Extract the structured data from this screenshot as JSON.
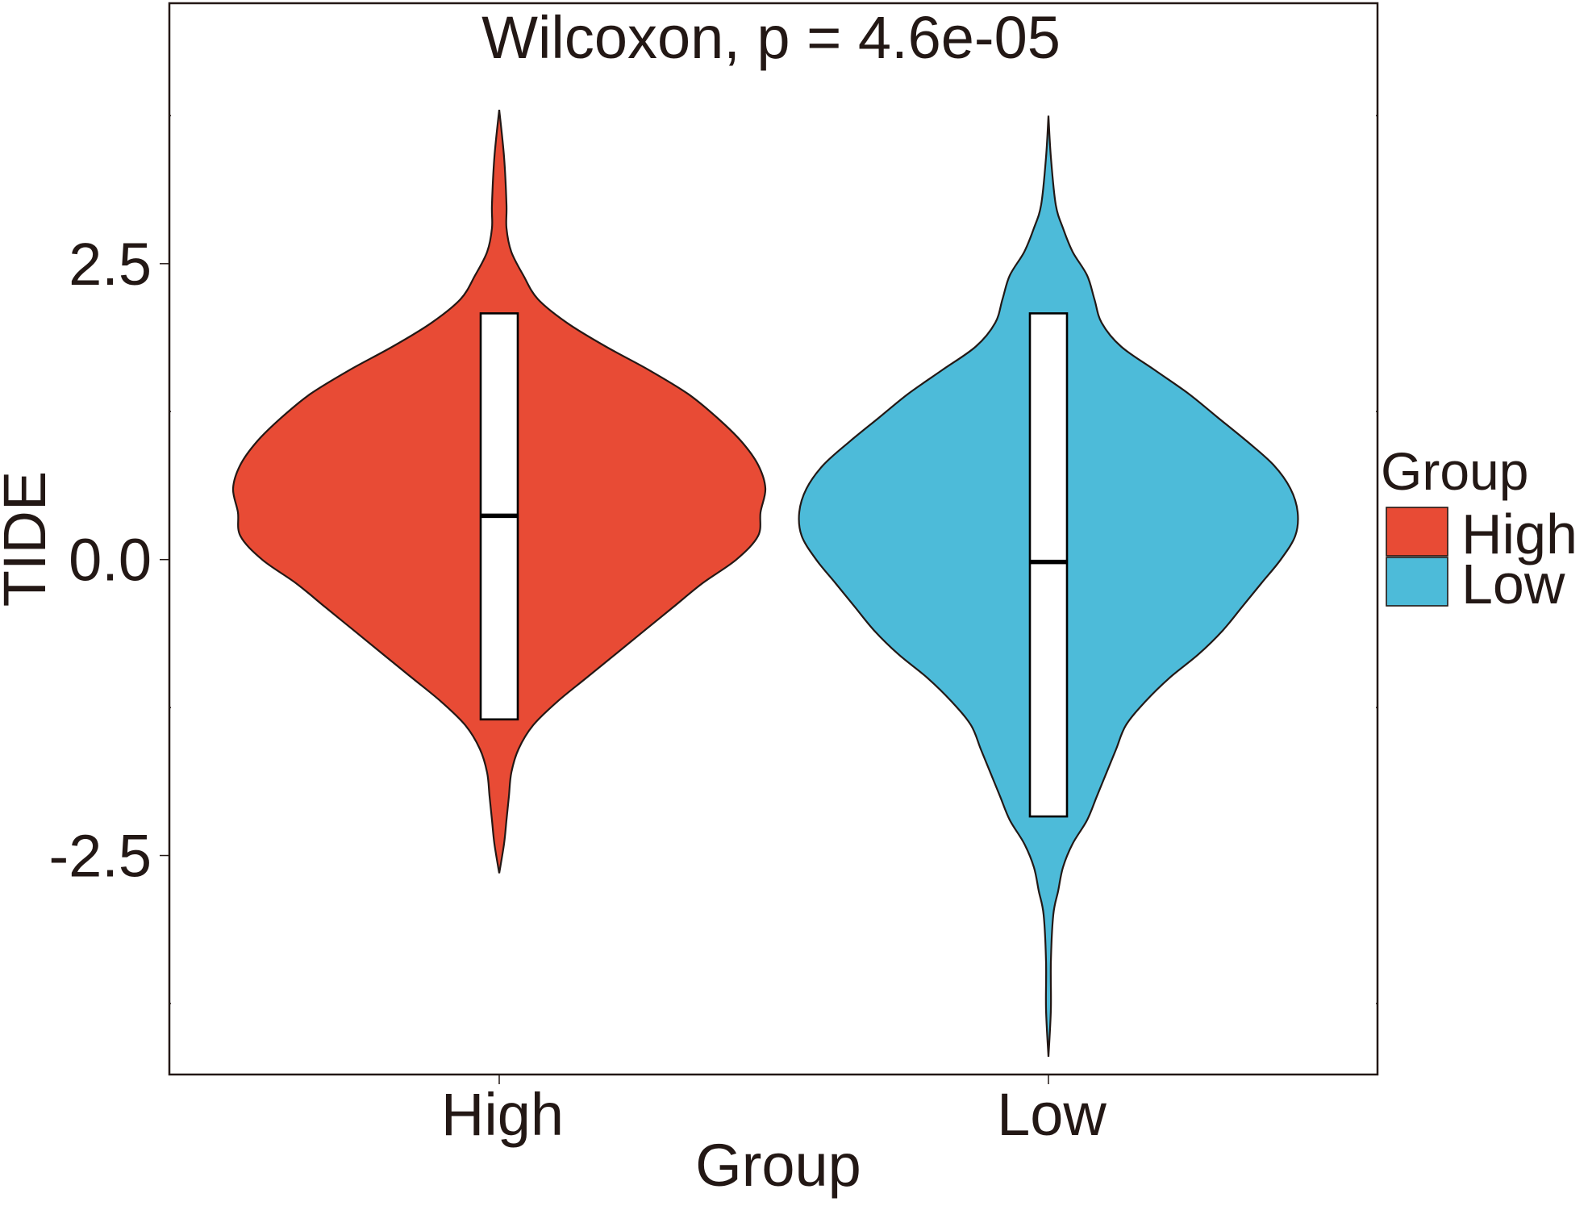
{
  "chart_data": {
    "type": "violin",
    "title": "",
    "annotation": "Wilcoxon, p = 4.6e-05",
    "xlabel": "Group",
    "ylabel": "TIDE",
    "ylim": [
      -4.35,
      4.7
    ],
    "y_ticks": [
      -2.5,
      0.0,
      2.5
    ],
    "y_tick_labels": [
      "-2.5",
      "0.0",
      "2.5"
    ],
    "categories": [
      "High",
      "Low"
    ],
    "grid": false,
    "legend": {
      "title": "Group",
      "position": "right",
      "entries": [
        {
          "label": "High",
          "color": "#E84B35"
        },
        {
          "label": "Low",
          "color": "#4DBBD9"
        }
      ]
    },
    "series": [
      {
        "name": "High",
        "color": "#E84B35",
        "box": {
          "q1": -1.35,
          "median": 0.37,
          "q3": 2.08
        },
        "range": [
          -2.65,
          3.8
        ],
        "density": [
          [
            3.8,
            0.0
          ],
          [
            3.4,
            0.02
          ],
          [
            3.0,
            0.03
          ],
          [
            2.8,
            0.03
          ],
          [
            2.6,
            0.05
          ],
          [
            2.4,
            0.1
          ],
          [
            2.2,
            0.16
          ],
          [
            2.0,
            0.28
          ],
          [
            1.8,
            0.44
          ],
          [
            1.6,
            0.62
          ],
          [
            1.4,
            0.78
          ],
          [
            1.2,
            0.9
          ],
          [
            1.0,
            1.0
          ],
          [
            0.8,
            1.07
          ],
          [
            0.6,
            1.1
          ],
          [
            0.4,
            1.08
          ],
          [
            0.2,
            1.07
          ],
          [
            0.0,
            0.98
          ],
          [
            -0.2,
            0.84
          ],
          [
            -0.4,
            0.72
          ],
          [
            -0.6,
            0.6
          ],
          [
            -0.8,
            0.48
          ],
          [
            -1.0,
            0.36
          ],
          [
            -1.2,
            0.24
          ],
          [
            -1.4,
            0.14
          ],
          [
            -1.6,
            0.08
          ],
          [
            -1.8,
            0.05
          ],
          [
            -2.0,
            0.04
          ],
          [
            -2.2,
            0.03
          ],
          [
            -2.4,
            0.02
          ],
          [
            -2.65,
            0.0
          ]
        ]
      },
      {
        "name": "Low",
        "color": "#4DBBD9",
        "box": {
          "q1": -2.17,
          "median": -0.02,
          "q3": 2.08
        },
        "range": [
          -4.2,
          3.75
        ],
        "density": [
          [
            3.75,
            0.0
          ],
          [
            3.4,
            0.01
          ],
          [
            3.0,
            0.03
          ],
          [
            2.8,
            0.06
          ],
          [
            2.6,
            0.1
          ],
          [
            2.4,
            0.16
          ],
          [
            2.2,
            0.19
          ],
          [
            2.0,
            0.22
          ],
          [
            1.8,
            0.3
          ],
          [
            1.6,
            0.44
          ],
          [
            1.4,
            0.58
          ],
          [
            1.2,
            0.7
          ],
          [
            1.0,
            0.82
          ],
          [
            0.8,
            0.93
          ],
          [
            0.6,
            1.0
          ],
          [
            0.4,
            1.03
          ],
          [
            0.2,
            1.02
          ],
          [
            0.0,
            0.96
          ],
          [
            -0.2,
            0.88
          ],
          [
            -0.4,
            0.8
          ],
          [
            -0.6,
            0.72
          ],
          [
            -0.8,
            0.62
          ],
          [
            -1.0,
            0.5
          ],
          [
            -1.2,
            0.4
          ],
          [
            -1.4,
            0.32
          ],
          [
            -1.6,
            0.28
          ],
          [
            -1.8,
            0.24
          ],
          [
            -2.0,
            0.2
          ],
          [
            -2.2,
            0.16
          ],
          [
            -2.4,
            0.1
          ],
          [
            -2.6,
            0.06
          ],
          [
            -2.8,
            0.04
          ],
          [
            -3.0,
            0.02
          ],
          [
            -3.4,
            0.01
          ],
          [
            -3.8,
            0.01
          ],
          [
            -4.2,
            0.0
          ]
        ]
      }
    ]
  }
}
